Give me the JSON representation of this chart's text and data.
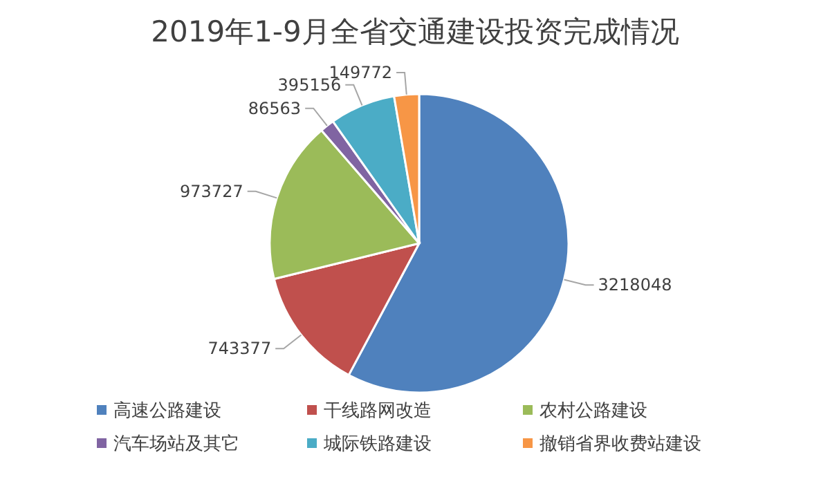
{
  "chart_data": {
    "type": "pie",
    "title": "2019年1-9月全省交通建设投资完成情况",
    "categories": [
      "高速公路建设",
      "干线路网改造",
      "农村公路建设",
      "汽车场站及其它",
      "城际铁路建设",
      "撤销省界收费站建设"
    ],
    "values": [
      3218048,
      743377,
      973727,
      86563,
      395156,
      149772
    ],
    "colors": [
      "#4f81bd",
      "#c0504d",
      "#9bbb59",
      "#8064a2",
      "#4bacc6",
      "#f79646"
    ],
    "data_labels": true,
    "legend": "bottom"
  }
}
